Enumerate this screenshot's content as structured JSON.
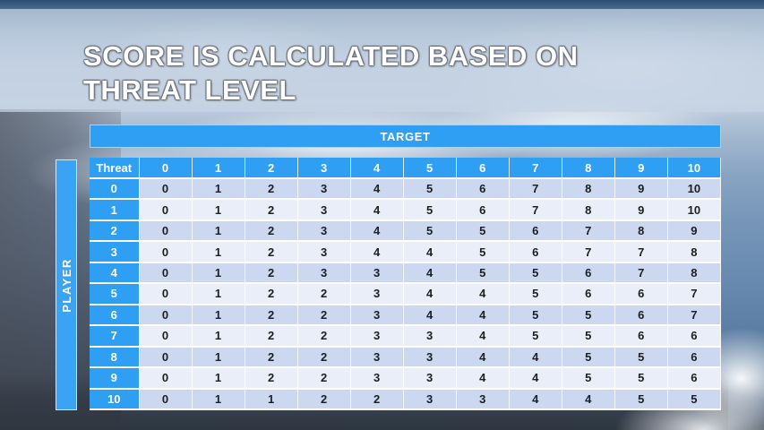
{
  "title": {
    "line1": "SCORE IS CALCULATED BASED ON",
    "line2": "THREAT LEVEL"
  },
  "table": {
    "target_label": "TARGET",
    "player_label": "PLAYER",
    "corner_label": "Threat",
    "column_headers": [
      "0",
      "1",
      "2",
      "3",
      "4",
      "5",
      "6",
      "7",
      "8",
      "9",
      "10"
    ],
    "rows": [
      {
        "label": "0",
        "values": [
          0,
          1,
          2,
          3,
          4,
          5,
          6,
          7,
          8,
          9,
          10
        ]
      },
      {
        "label": "1",
        "values": [
          0,
          1,
          2,
          3,
          4,
          5,
          6,
          7,
          8,
          9,
          10
        ]
      },
      {
        "label": "2",
        "values": [
          0,
          1,
          2,
          3,
          4,
          5,
          5,
          6,
          7,
          8,
          9
        ]
      },
      {
        "label": "3",
        "values": [
          0,
          1,
          2,
          3,
          4,
          4,
          5,
          6,
          7,
          7,
          8
        ]
      },
      {
        "label": "4",
        "values": [
          0,
          1,
          2,
          3,
          3,
          4,
          5,
          5,
          6,
          7,
          8
        ]
      },
      {
        "label": "5",
        "values": [
          0,
          1,
          2,
          2,
          3,
          4,
          4,
          5,
          6,
          6,
          7
        ]
      },
      {
        "label": "6",
        "values": [
          0,
          1,
          2,
          2,
          3,
          4,
          4,
          5,
          5,
          6,
          7
        ]
      },
      {
        "label": "7",
        "values": [
          0,
          1,
          2,
          2,
          3,
          3,
          4,
          5,
          5,
          6,
          6
        ]
      },
      {
        "label": "8",
        "values": [
          0,
          1,
          2,
          2,
          3,
          3,
          4,
          4,
          5,
          5,
          6
        ]
      },
      {
        "label": "9",
        "values": [
          0,
          1,
          2,
          2,
          3,
          3,
          4,
          4,
          5,
          5,
          6
        ]
      },
      {
        "label": "10",
        "values": [
          0,
          1,
          1,
          2,
          2,
          3,
          3,
          4,
          4,
          5,
          5
        ]
      }
    ]
  },
  "colors": {
    "accent_blue": "#2F9FF3",
    "row_even": "#CCD8F0",
    "row_odd": "#EAEEF9",
    "cell_text": "#1E1E1E",
    "header_text": "#FFFFFF",
    "banner_overlay": "#C6D4E4"
  }
}
